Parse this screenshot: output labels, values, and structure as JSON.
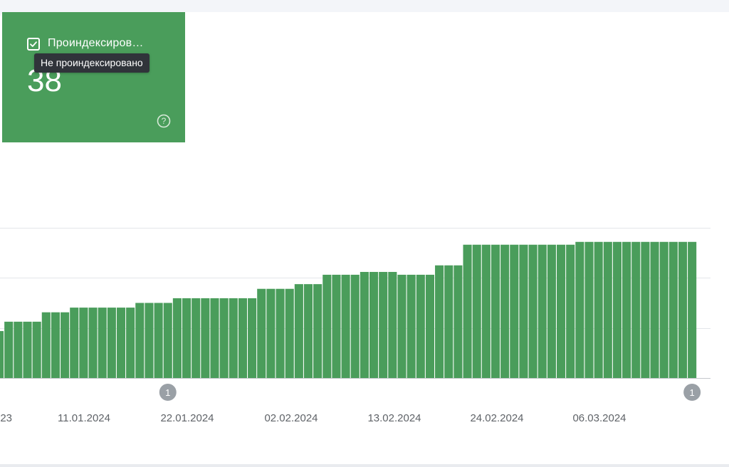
{
  "metric_card": {
    "label": "Проиндексиров…",
    "value": "38",
    "checked": true,
    "tooltip": "Не проиндексировано",
    "check_icon": "check-icon",
    "help_icon": "help-circle-icon",
    "color": "#4a9d5b"
  },
  "chart_data": {
    "type": "bar",
    "bar_color": "#4a9d5b",
    "grid": true,
    "x_tick_labels": [
      "23",
      "11.01.2024",
      "22.01.2024",
      "02.02.2024",
      "13.02.2024",
      "24.02.2024",
      "06.03.2024"
    ],
    "annotations": [
      {
        "label": "1",
        "bar_index": 18
      },
      {
        "label": "1",
        "bar_index": 74
      }
    ],
    "values": [
      5,
      6,
      6,
      6,
      6,
      7,
      7,
      7,
      7.5,
      7.5,
      7.5,
      7.5,
      7.5,
      7.5,
      7.5,
      8,
      8,
      8,
      8,
      8.5,
      8.5,
      8.5,
      8.5,
      8.5,
      8.5,
      8.5,
      8.5,
      8.5,
      9.5,
      9.5,
      9.5,
      9.5,
      10,
      10,
      10,
      11,
      11,
      11,
      11,
      11.3,
      11.3,
      11.3,
      11.3,
      11,
      11,
      11,
      11,
      12,
      12,
      12,
      14.2,
      14.2,
      14.2,
      14.2,
      14.2,
      14.2,
      14.2,
      14.2,
      14.2,
      14.2,
      14.2,
      14.2,
      14.5,
      14.5,
      14.5,
      14.5,
      14.5,
      14.5,
      14.5,
      14.5,
      14.5,
      14.5,
      14.5,
      14.5,
      14.5
    ],
    "ylim": [
      0,
      16
    ]
  }
}
